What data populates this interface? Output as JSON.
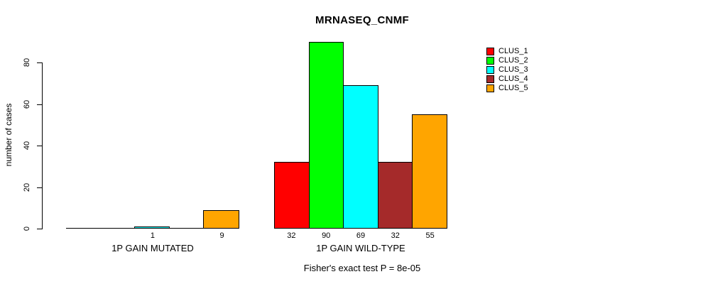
{
  "title": "MRNASEQ_CNMF",
  "footer": "Fisher's exact test P = 8e-05",
  "y_axis": {
    "label": "number of cases",
    "ticks": [
      0,
      20,
      40,
      60,
      80
    ]
  },
  "legend": {
    "entries": [
      {
        "label": "CLUS_1",
        "color": "#FF0000"
      },
      {
        "label": "CLUS_2",
        "color": "#00FF00"
      },
      {
        "label": "CLUS_3",
        "color": "#00FFFF"
      },
      {
        "label": "CLUS_4",
        "color": "#A52A2A"
      },
      {
        "label": "CLUS_5",
        "color": "#FFA500"
      }
    ]
  },
  "chart_data": {
    "type": "bar",
    "title": "MRNASEQ_CNMF",
    "xlabel": "",
    "ylabel": "number of cases",
    "ylim": [
      0,
      90
    ],
    "grid": false,
    "legend_position": "top-right",
    "series_names": [
      "CLUS_1",
      "CLUS_2",
      "CLUS_3",
      "CLUS_4",
      "CLUS_5"
    ],
    "series_colors": [
      "#FF0000",
      "#00FF00",
      "#00FFFF",
      "#A52A2A",
      "#FFA500"
    ],
    "groups": [
      {
        "label": "1P GAIN MUTATED",
        "values": [
          0,
          0,
          1,
          0,
          9
        ],
        "bar_labels": [
          "",
          "",
          "1",
          "",
          "9"
        ]
      },
      {
        "label": "1P GAIN WILD-TYPE",
        "values": [
          32,
          90,
          69,
          32,
          55
        ],
        "bar_labels": [
          "32",
          "90",
          "69",
          "32",
          "55"
        ]
      }
    ],
    "annotation": "Fisher's exact test P = 8e-05"
  }
}
